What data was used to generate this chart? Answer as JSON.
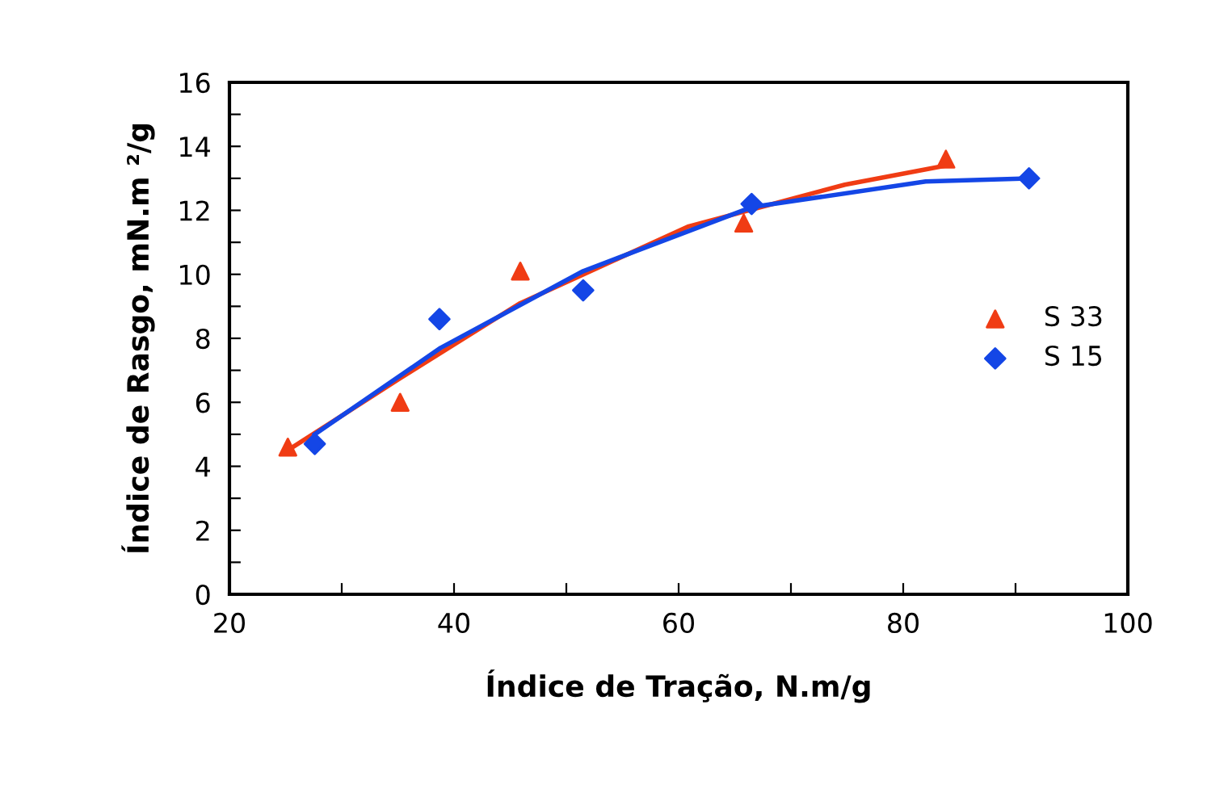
{
  "chart_data": {
    "type": "scatter",
    "xlabel": "Índice de Tração, N.m/g",
    "ylabel": "Índice de Rasgo, mN.m ²/g",
    "xlim": [
      20,
      100
    ],
    "ylim": [
      0,
      16
    ],
    "xticks": [
      20,
      {
        "value": 30,
        "label": null
      },
      40,
      {
        "value": 50,
        "label": null
      },
      60,
      {
        "value": 70,
        "label": null
      },
      80,
      {
        "value": 90,
        "label": null
      },
      100
    ],
    "yticks": [
      0,
      {
        "value": 1,
        "label": null
      },
      2,
      {
        "value": 3,
        "label": null
      },
      4,
      {
        "value": 5,
        "label": null
      },
      6,
      {
        "value": 7,
        "label": null
      },
      8,
      {
        "value": 9,
        "label": null
      },
      10,
      {
        "value": 11,
        "label": null
      },
      12,
      {
        "value": 13,
        "label": null
      },
      14,
      {
        "value": 15,
        "label": null
      },
      16
    ],
    "grid": false,
    "legend": "right",
    "series": [
      {
        "name": "S 33",
        "color": "#f03c14",
        "marker": "triangle",
        "x": [
          25.2,
          35.2,
          45.9,
          65.8,
          83.8
        ],
        "values": [
          4.6,
          6.0,
          10.1,
          11.6,
          13.6
        ]
      },
      {
        "name": "S 15",
        "color": "#1446e6",
        "marker": "diamond",
        "x": [
          27.6,
          38.7,
          51.5,
          66.5,
          91.2
        ],
        "values": [
          4.7,
          8.6,
          9.5,
          12.2,
          13.0
        ]
      },
      {
        "type": "line",
        "color": "#f03c14",
        "x": [
          25.2,
          35.2,
          45.9,
          60.9,
          74.8,
          83.8
        ],
        "values": [
          4.5,
          6.75,
          9.1,
          11.5,
          12.8,
          13.4
        ]
      },
      {
        "type": "line",
        "color": "#1446e6",
        "x": [
          27.6,
          38.8,
          51.5,
          66.5,
          82.0,
          91.2
        ],
        "values": [
          5.0,
          7.7,
          10.1,
          12.1,
          12.9,
          13.0
        ]
      }
    ]
  }
}
